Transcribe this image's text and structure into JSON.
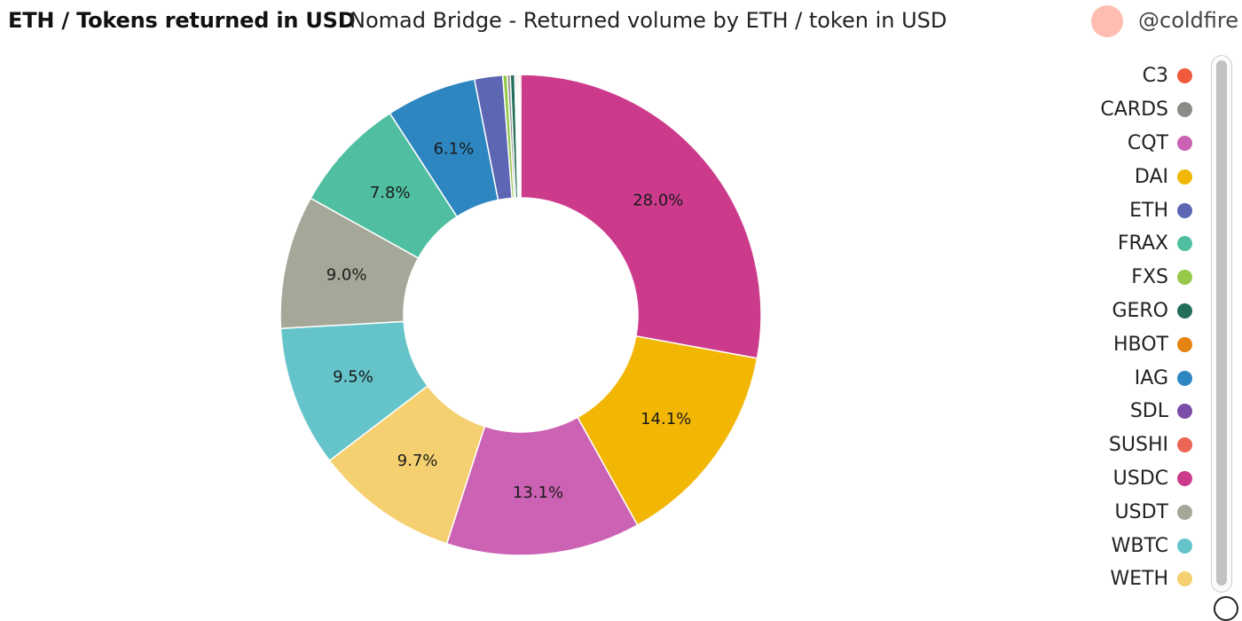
{
  "header": {
    "title": "ETH / Tokens returned in USD",
    "subtitle": "Nomad Bridge - Returned volume by ETH / token in USD",
    "user": "@coldfire"
  },
  "colors": {
    "C3": "#f05a3c",
    "CARDS": "#8a8a87",
    "CQT": "#cc62b4",
    "DAI": "#f2b705",
    "ETH": "#5c66b3",
    "FRAX": "#50bea0",
    "FXS": "#96c84a",
    "GERO": "#236e5a",
    "HBOT": "#e6820f",
    "IAG": "#2e86c1",
    "SDL": "#7a4ea6",
    "SUSHI": "#eb6455",
    "USDC": "#cc3a8c",
    "USDT": "#a5a898",
    "WBTC": "#64c4ca",
    "WETH": "#f5d070"
  },
  "chart_data": {
    "type": "pie",
    "donut": true,
    "legend_placement": "right",
    "slices": [
      {
        "name": "USDC",
        "value": 28.0,
        "label": "28.0%"
      },
      {
        "name": "DAI",
        "value": 14.1,
        "label": "14.1%"
      },
      {
        "name": "CQT",
        "value": 13.1,
        "label": "13.1%"
      },
      {
        "name": "WETH",
        "value": 9.7,
        "label": "9.7%"
      },
      {
        "name": "WBTC",
        "value": 9.5,
        "label": "9.5%"
      },
      {
        "name": "USDT",
        "value": 9.0,
        "label": "9.0%"
      },
      {
        "name": "FRAX",
        "value": 7.8,
        "label": "7.8%"
      },
      {
        "name": "IAG",
        "value": 6.1,
        "label": "6.1%"
      },
      {
        "name": "ETH",
        "value": 1.9,
        "label": ""
      },
      {
        "name": "FXS",
        "value": 0.3,
        "label": ""
      },
      {
        "name": "CARDS",
        "value": 0.2,
        "label": ""
      },
      {
        "name": "GERO",
        "value": 0.3,
        "label": ""
      },
      {
        "name": "SDL",
        "value": 0.1,
        "label": ""
      },
      {
        "name": "HBOT",
        "value": 0.1,
        "label": ""
      },
      {
        "name": "SUSHI",
        "value": 0.1,
        "label": ""
      },
      {
        "name": "C3",
        "value": 0.1,
        "label": ""
      }
    ],
    "legend": [
      "C3",
      "CARDS",
      "CQT",
      "DAI",
      "ETH",
      "FRAX",
      "FXS",
      "GERO",
      "HBOT",
      "IAG",
      "SDL",
      "SUSHI",
      "USDC",
      "USDT",
      "WBTC",
      "WETH"
    ]
  }
}
